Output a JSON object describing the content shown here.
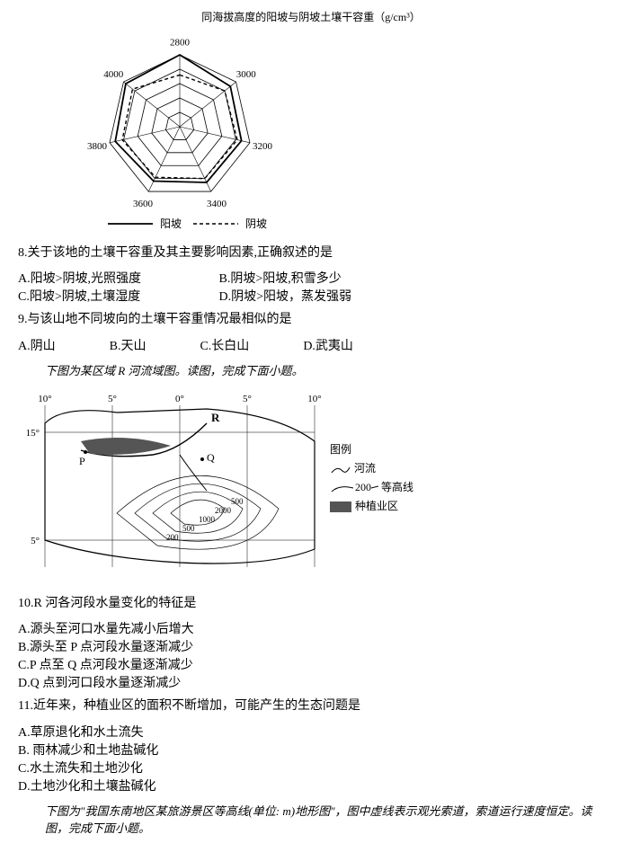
{
  "radar": {
    "title": "同海拔高度的阳坡与阴坡土壤干容重（g/cm³）",
    "axes": [
      "2800",
      "3000",
      "3200",
      "3400",
      "3600",
      "3800",
      "4000"
    ],
    "rings": 5,
    "series_solid_label": "阳坡",
    "series_dashed_label": "阴坡",
    "solid_color": "#000000",
    "dashed_color": "#000000",
    "series_solid": [
      1.0,
      0.9,
      0.88,
      0.86,
      0.84,
      0.92,
      0.96
    ],
    "series_dashed": [
      0.72,
      0.8,
      0.82,
      0.8,
      0.78,
      0.82,
      0.84
    ]
  },
  "q8": {
    "text": "8.关于该地的土壤干容重及其主要影响因素,正确叙述的是",
    "A": "A.阳坡>阴坡,光照强度",
    "B": "B.阴坡>阳坡,积雪多少",
    "C": "C.阳坡>阴坡,土壤湿度",
    "D": "D.阴坡>阳坡，蒸发强弱"
  },
  "q9": {
    "text": "9.与该山地不同坡向的土壤干容重情况最相似的是",
    "A": "A.阴山",
    "B": "B.天山",
    "C": "C.长白山",
    "D": "D.武夷山"
  },
  "intro2": "下图为某区域 R 河流域图。读图，完成下面小题。",
  "map": {
    "lon_labels": [
      "10°",
      "5°",
      "0°",
      "5°",
      "10°"
    ],
    "lat_labels": [
      "15°",
      "5°"
    ],
    "river_label": "R",
    "points": [
      "P",
      "Q"
    ],
    "contours": [
      "200",
      "500",
      "1000",
      "2000",
      "500"
    ],
    "legend_title": "图例",
    "legend_river": "河流",
    "legend_contour": "等高线",
    "legend_contour_val": "200",
    "legend_farm": "种植业区",
    "border_color": "#000000",
    "farm_fill": "#555555"
  },
  "q10": {
    "text": "10.R 河各河段水量变化的特征是",
    "A": "A.源头至河口水量先减小后增大",
    "B": "B.源头至 P 点河段水量逐渐减少",
    "C": "C.P 点至 Q 点河段水量逐渐减少",
    "D": "D.Q 点到河口段水量逐渐减少"
  },
  "q11": {
    "text": "11.近年来，种植业区的面积不断增加，可能产生的生态问题是",
    "A": "A.草原退化和水土流失",
    "B": "B. 雨林减少和土地盐碱化",
    "C": "C.水土流失和土地沙化",
    "D": "D.土地沙化和土壤盐碱化"
  },
  "intro3": "下图为\"我国东南地区某旅游景区等高线(单位: m)地形图\"，图中虚线表示观光索道，索道运行速度恒定。读图，完成下面小题。"
}
